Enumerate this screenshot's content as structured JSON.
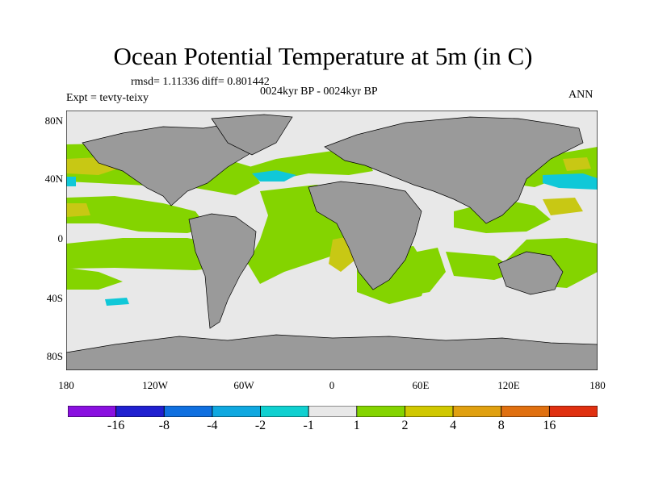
{
  "title": "Ocean Potential Temperature at 5m (in C)",
  "stats": "rmsd= 1.11336 diff= 0.801442",
  "expt": "Expt = tevty-teixy",
  "period": "0024kyr BP - 0024kyr BP",
  "season": "ANN",
  "colors": {
    "land": "#9a9a9a",
    "ocean_neutral": "#e8e8e8",
    "pos_1_2": "#84d400",
    "pos_2_4": "#c8c814",
    "pos_4_8": "#e0a010",
    "neg_1_2": "#10c8d8",
    "neg_2_4": "#10a8e0"
  },
  "map": {
    "lat_labels": [
      "80N",
      "40N",
      "0",
      "40S",
      "80S"
    ],
    "lon_labels": [
      "180",
      "120W",
      "60W",
      "0",
      "60E",
      "120E",
      "180"
    ]
  },
  "colorbar": {
    "colors": [
      "#8a10e0",
      "#2020d0",
      "#1070e0",
      "#10a8e0",
      "#10d0d0",
      "#e8e8e8",
      "#84d400",
      "#d0c800",
      "#e0a010",
      "#e07010",
      "#e03010"
    ],
    "labels": [
      "-16",
      "-8",
      "-4",
      "-2",
      "-1",
      "1",
      "2",
      "4",
      "8",
      "16"
    ]
  }
}
